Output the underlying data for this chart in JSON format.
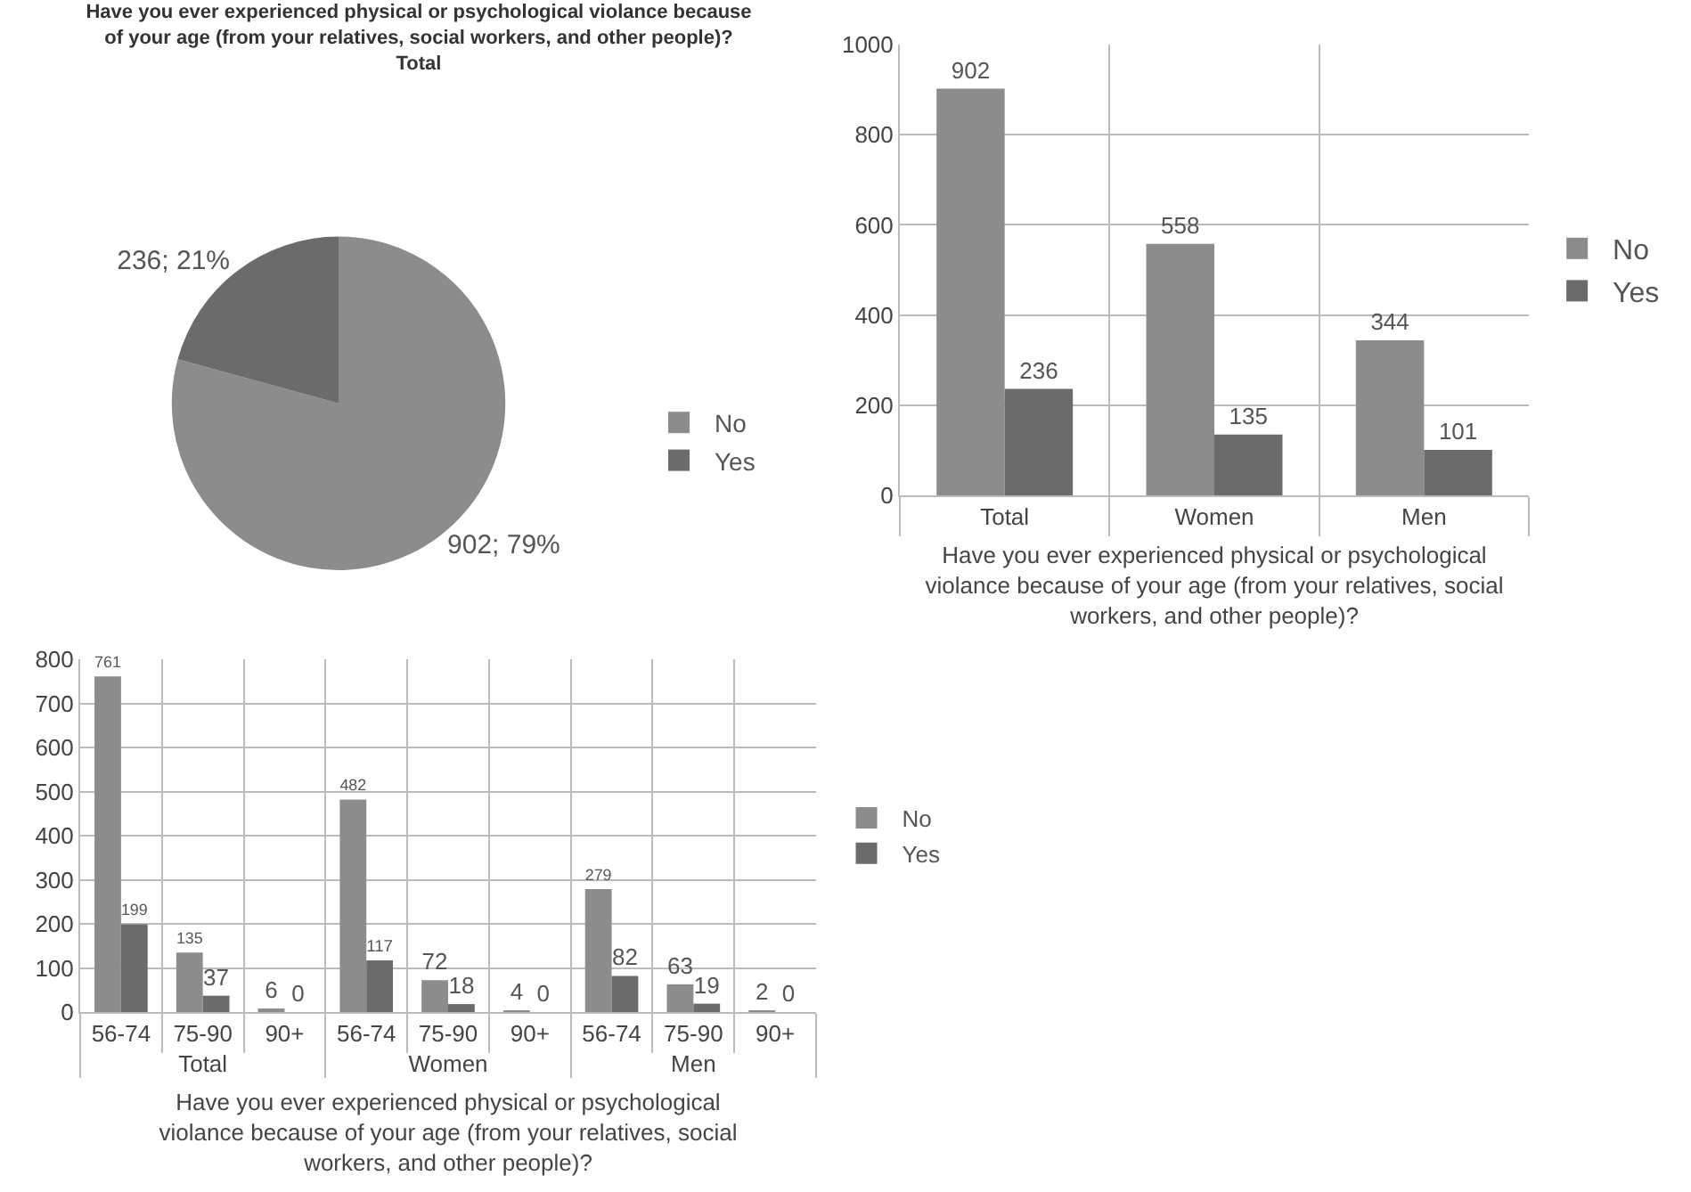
{
  "chart_data": [
    {
      "type": "pie",
      "title": "Have you ever experienced physical or psychological violance because\nof your age (from your relatives, social workers, and other people)?\nTotal",
      "categories": [
        "No",
        "Yes"
      ],
      "values": [
        902,
        236
      ],
      "colors": [
        "#8c8c8c",
        "#6b6b6b"
      ],
      "value_labels": [
        "902; 79%",
        "236; 21%"
      ],
      "legend": "right"
    },
    {
      "type": "bar",
      "categories": [
        "Total",
        "Women",
        "Men"
      ],
      "xlabel": "Have you ever experienced physical or psychological\nviolance because of your age (from your relatives, social\nworkers, and other people)?",
      "series": [
        {
          "name": "No",
          "color": "#8c8c8c",
          "values": [
            902,
            558,
            344
          ]
        },
        {
          "name": "Yes",
          "color": "#6b6b6b",
          "values": [
            236,
            135,
            101
          ]
        }
      ],
      "ylim": [
        0,
        1000
      ],
      "yticks": [
        0,
        200,
        400,
        600,
        800,
        1000
      ],
      "grid": true,
      "data_labels": true,
      "legend": "right"
    },
    {
      "type": "bar",
      "categories": [
        "56-74",
        "75-90",
        "90+",
        "56-74",
        "75-90",
        "90+",
        "56-74",
        "75-90",
        "90+"
      ],
      "annotations": [
        "Total",
        "Women",
        "Men"
      ],
      "xlabel": "Have you ever experienced physical or psychological\nviolance because of your age (from your relatives, social\nworkers, and other people)?",
      "series": [
        {
          "name": "No",
          "color": "#8c8c8c",
          "values": [
            761,
            135,
            6,
            482,
            72,
            4,
            279,
            63,
            2
          ]
        },
        {
          "name": "Yes",
          "color": "#6b6b6b",
          "values": [
            199,
            37,
            0,
            117,
            18,
            0,
            82,
            19,
            0
          ]
        }
      ],
      "ylim": [
        0,
        800
      ],
      "yticks": [
        0,
        100,
        200,
        300,
        400,
        500,
        600,
        700,
        800
      ],
      "grid": true,
      "data_labels": true,
      "legend": "right"
    }
  ]
}
